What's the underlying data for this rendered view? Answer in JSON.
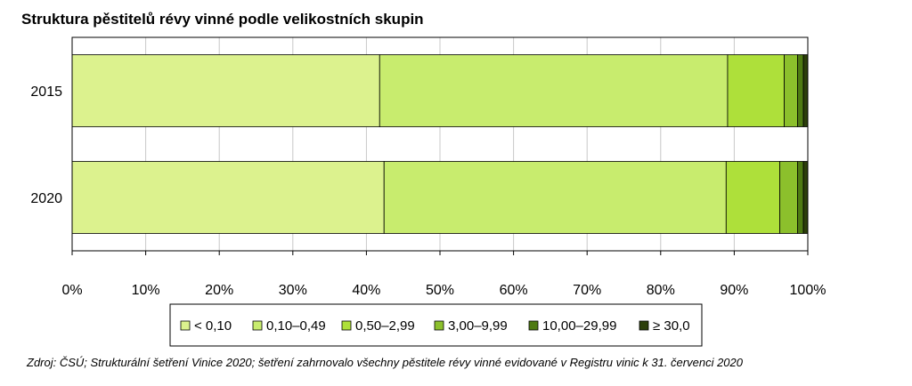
{
  "chart_data": {
    "type": "bar",
    "orientation": "horizontal",
    "stacked": true,
    "title": "Struktura pěstitelů révy vinné podle velikostních skupin",
    "categories": [
      "2015",
      "2020"
    ],
    "series": [
      {
        "name": "< 0,10",
        "values": [
          41.8,
          42.4
        ],
        "color": "#dcf28e"
      },
      {
        "name": "0,10–0,49",
        "values": [
          47.3,
          46.5
        ],
        "color": "#c8ec6e"
      },
      {
        "name": "0,50–2,99",
        "values": [
          7.7,
          7.3
        ],
        "color": "#aee03a"
      },
      {
        "name": "3,00–9,99",
        "values": [
          1.8,
          2.4
        ],
        "color": "#8cc02c"
      },
      {
        "name": "10,00–29,99",
        "values": [
          0.8,
          0.8
        ],
        "color": "#4e7a12"
      },
      {
        "name": "≥ 30,0",
        "values": [
          0.6,
          0.6
        ],
        "color": "#2c3f0a"
      }
    ],
    "xlim": [
      0,
      100
    ],
    "xticks": [
      "0%",
      "10%",
      "20%",
      "30%",
      "40%",
      "50%",
      "60%",
      "70%",
      "80%",
      "90%",
      "100%"
    ],
    "grid": "vertical",
    "legend": "bottom",
    "source": "Zdroj: ČSÚ; Strukturální šetření Vinice 2020; šetření zahrnovalo všechny pěstitele révy vinné evidované v Registru vinic k 31. červenci 2020"
  }
}
